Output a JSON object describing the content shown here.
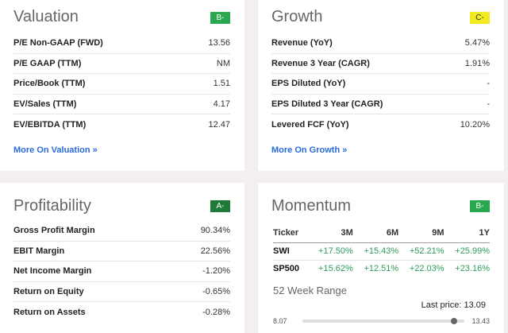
{
  "colors": {
    "green": "#2aa84f",
    "yellow": "#f0ea1e",
    "dark_green": "#1e7a36",
    "link": "#2a6ad8",
    "positive": "#2e9d5b"
  },
  "valuation": {
    "title": "Valuation",
    "grade": "B-",
    "rows": [
      {
        "k": "P/E Non-GAAP (FWD)",
        "v": "13.56"
      },
      {
        "k": "P/E GAAP (TTM)",
        "v": "NM"
      },
      {
        "k": "Price/Book (TTM)",
        "v": "1.51"
      },
      {
        "k": "EV/Sales (TTM)",
        "v": "4.17"
      },
      {
        "k": "EV/EBITDA (TTM)",
        "v": "12.47"
      }
    ],
    "link": "More On Valuation »"
  },
  "growth": {
    "title": "Growth",
    "grade": "C-",
    "rows": [
      {
        "k": "Revenue (YoY)",
        "v": "5.47%"
      },
      {
        "k": "Revenue 3 Year (CAGR)",
        "v": "1.91%"
      },
      {
        "k": "EPS Diluted (YoY)",
        "v": "-"
      },
      {
        "k": "EPS Diluted 3 Year (CAGR)",
        "v": "-"
      },
      {
        "k": "Levered FCF (YoY)",
        "v": "10.20%"
      }
    ],
    "link": "More On Growth »"
  },
  "profitability": {
    "title": "Profitability",
    "grade": "A-",
    "rows": [
      {
        "k": "Gross Profit Margin",
        "v": "90.34%"
      },
      {
        "k": "EBIT Margin",
        "v": "22.56%"
      },
      {
        "k": "Net Income Margin",
        "v": "-1.20%"
      },
      {
        "k": "Return on Equity",
        "v": "-0.65%"
      },
      {
        "k": "Return on Assets",
        "v": "-0.28%"
      }
    ]
  },
  "momentum": {
    "title": "Momentum",
    "grade": "B-",
    "headers": [
      "Ticker",
      "3M",
      "6M",
      "9M",
      "1Y"
    ],
    "rows": [
      [
        "SWI",
        "+17.50%",
        "+15.43%",
        "+52.21%",
        "+25.99%"
      ],
      [
        "SP500",
        "+15.62%",
        "+12.51%",
        "+22.03%",
        "+23.16%"
      ]
    ],
    "range": {
      "title": "52 Week Range",
      "last_price_label": "Last price: 13.09",
      "low": "8.07",
      "high": "13.43",
      "low_value": 8.07,
      "high_value": 13.43,
      "last_value": 13.09
    }
  }
}
